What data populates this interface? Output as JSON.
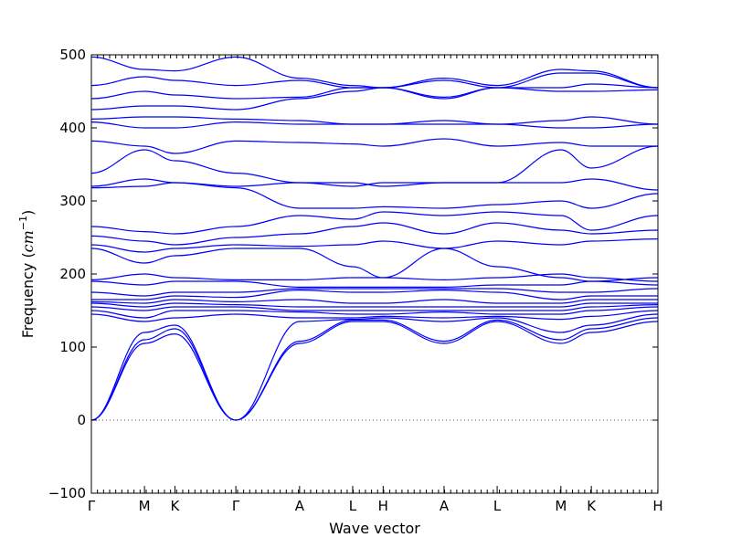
{
  "chart_data": {
    "type": "line",
    "title": "",
    "xlabel": "Wave vector",
    "ylabel_text": "Frequency (",
    "ylabel_unit": "cm",
    "ylabel_exp": "−1",
    "ylabel_close": ")",
    "ylim": [
      -100,
      500
    ],
    "yticks": [
      -100,
      0,
      100,
      200,
      300,
      400,
      500
    ],
    "xlim": [
      0,
      8.0
    ],
    "grid": false,
    "zero_line": true,
    "line_color": "#0000ff",
    "high_symmetry_points": [
      {
        "label": "Γ",
        "x": 0.0
      },
      {
        "label": "M",
        "x": 0.75
      },
      {
        "label": "K",
        "x": 1.18
      },
      {
        "label": "Γ",
        "x": 2.04
      },
      {
        "label": "A",
        "x": 2.94
      },
      {
        "label": "L",
        "x": 3.69
      },
      {
        "label": "H",
        "x": 4.12
      },
      {
        "label": "A",
        "x": 4.98
      },
      {
        "label": "L",
        "x": 5.73
      },
      {
        "label": "M",
        "x": 6.63
      },
      {
        "label": "K",
        "x": 7.06
      },
      {
        "label": "H",
        "x": 8.0
      }
    ],
    "minor_tick_spacing": 0.086,
    "band_values_at_points": [
      [
        0,
        105,
        118,
        0,
        105,
        135,
        135,
        105,
        135,
        105,
        120,
        135
      ],
      [
        0,
        110,
        125,
        0,
        108,
        137,
        137,
        108,
        137,
        110,
        125,
        140
      ],
      [
        0,
        120,
        130,
        0,
        135,
        138,
        140,
        135,
        140,
        120,
        130,
        145
      ],
      [
        145,
        135,
        140,
        145,
        140,
        140,
        142,
        140,
        142,
        138,
        142,
        150
      ],
      [
        150,
        140,
        150,
        150,
        148,
        145,
        145,
        148,
        145,
        145,
        150,
        155
      ],
      [
        155,
        150,
        155,
        155,
        150,
        150,
        150,
        150,
        150,
        150,
        155,
        158
      ],
      [
        160,
        155,
        160,
        158,
        155,
        155,
        155,
        155,
        155,
        155,
        160,
        160
      ],
      [
        162,
        160,
        165,
        162,
        165,
        160,
        160,
        165,
        160,
        160,
        165,
        165
      ],
      [
        165,
        165,
        170,
        168,
        178,
        175,
        175,
        178,
        175,
        165,
        170,
        170
      ],
      [
        175,
        170,
        175,
        175,
        180,
        180,
        180,
        180,
        180,
        175,
        175,
        180
      ],
      [
        190,
        185,
        190,
        190,
        182,
        182,
        182,
        182,
        185,
        185,
        190,
        185
      ],
      [
        192,
        200,
        195,
        192,
        192,
        195,
        195,
        192,
        195,
        200,
        195,
        190
      ],
      [
        235,
        215,
        225,
        235,
        235,
        210,
        195,
        235,
        210,
        195,
        190,
        195
      ],
      [
        240,
        230,
        235,
        240,
        238,
        240,
        245,
        235,
        245,
        240,
        245,
        248
      ],
      [
        252,
        245,
        240,
        250,
        255,
        265,
        270,
        255,
        270,
        260,
        255,
        260
      ],
      [
        265,
        258,
        255,
        265,
        280,
        275,
        285,
        280,
        285,
        280,
        260,
        280
      ],
      [
        318,
        320,
        325,
        318,
        290,
        290,
        292,
        290,
        295,
        300,
        290,
        310
      ],
      [
        320,
        330,
        325,
        320,
        325,
        320,
        325,
        325,
        325,
        325,
        330,
        315
      ],
      [
        338,
        370,
        355,
        338,
        325,
        325,
        320,
        325,
        325,
        370,
        345,
        375
      ],
      [
        382,
        375,
        365,
        382,
        380,
        378,
        375,
        385,
        375,
        380,
        375,
        375
      ],
      [
        408,
        400,
        400,
        408,
        405,
        405,
        405,
        405,
        405,
        400,
        400,
        405
      ],
      [
        412,
        415,
        415,
        412,
        410,
        405,
        405,
        410,
        405,
        410,
        415,
        405
      ],
      [
        425,
        430,
        430,
        425,
        440,
        450,
        455,
        440,
        455,
        450,
        450,
        452
      ],
      [
        440,
        450,
        445,
        440,
        442,
        455,
        455,
        442,
        455,
        455,
        460,
        455
      ],
      [
        458,
        470,
        465,
        458,
        465,
        455,
        455,
        465,
        455,
        475,
        475,
        455
      ],
      [
        497,
        480,
        478,
        497,
        468,
        458,
        455,
        468,
        458,
        480,
        478,
        455
      ]
    ]
  }
}
